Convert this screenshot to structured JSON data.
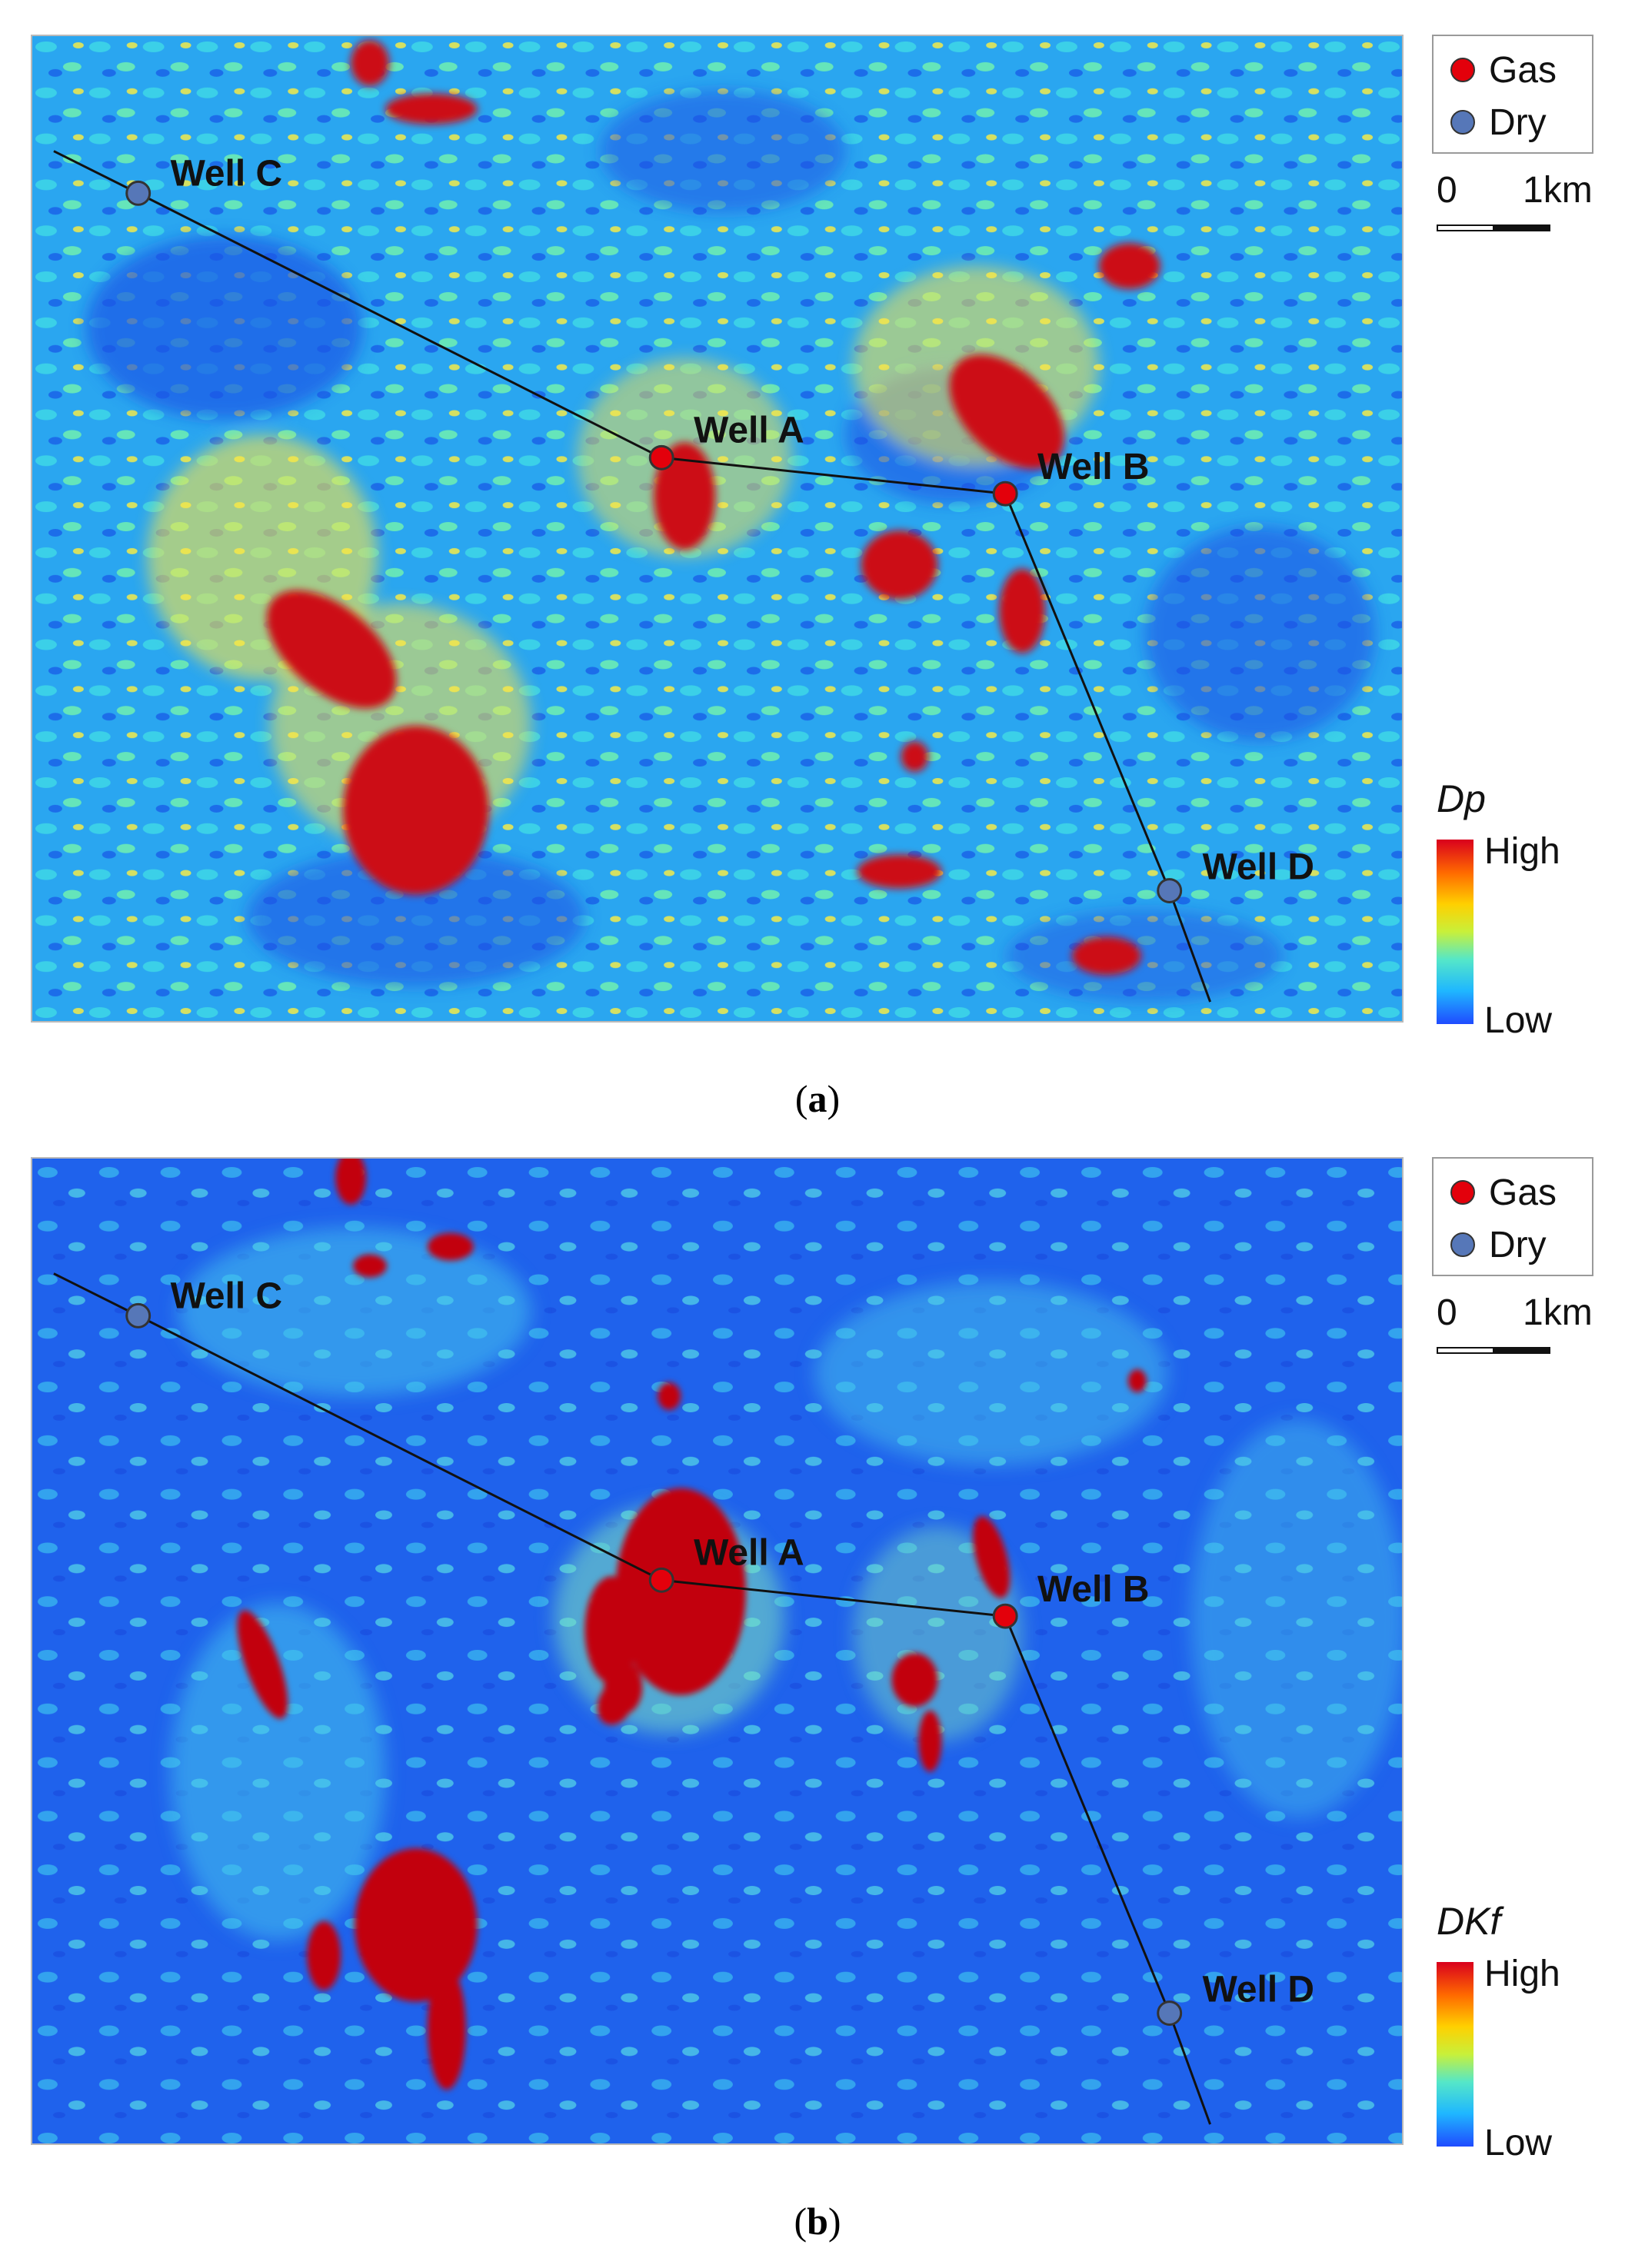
{
  "legend": {
    "gas_label": "Gas",
    "dry_label": "Dry",
    "gas_color": "#e3000b",
    "dry_color": "#5677b8"
  },
  "scale": {
    "zero": "0",
    "distance": "1km"
  },
  "colorbar": {
    "high": "High",
    "low": "Low"
  },
  "colors": {
    "high": "#c80015",
    "mid_high": "#ff3a00",
    "mid": "#ffd800",
    "low_mid": "#27c6f2",
    "low": "#1c5be6"
  },
  "panels": [
    {
      "id": "a",
      "caption_letter": "a",
      "attribute": "Dp"
    },
    {
      "id": "b",
      "caption_letter": "b",
      "attribute": "DKf"
    }
  ],
  "wells": [
    {
      "name": "Well C",
      "status": "Dry"
    },
    {
      "name": "Well A",
      "status": "Gas"
    },
    {
      "name": "Well B",
      "status": "Gas"
    },
    {
      "name": "Well D",
      "status": "Dry"
    }
  ]
}
